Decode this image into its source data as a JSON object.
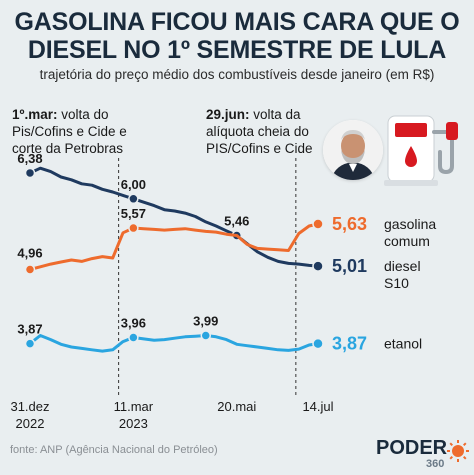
{
  "header": {
    "title_line1": "GASOLINA FICOU MAIS CARA QUE O",
    "title_line2": "DIESEL NO 1º SEMESTRE DE LULA",
    "subtitle": "trajetória do preço médio dos combustíveis desde janeiro (em R$)"
  },
  "annotations": {
    "left": {
      "date": "1º.mar:",
      "line1_rest": " volta do",
      "line2": "Pis/Cofins e Cide e",
      "line3": "corte da Petrobras"
    },
    "right": {
      "date": "29.jun:",
      "line1_rest": " volta da",
      "line2": "alíquota cheia do",
      "line3": "PIS/Cofins e Cide"
    }
  },
  "source": "fonte: ANP (Agência Nacional do Petróleo)",
  "logo": {
    "text": "PODER",
    "sub": "360"
  },
  "icons": {
    "avatar": "lula-portrait",
    "pump": "fuel-pump-icon"
  },
  "colors": {
    "diesel": "#1f3a5f",
    "gasolina": "#ee6b2d",
    "etanol": "#2aa5e0",
    "title": "#1a2b3c",
    "logo_accent": "#ee6b2d",
    "pump_red": "#d71920"
  },
  "chart_data": {
    "type": "line",
    "x": [
      "2022-12-31",
      "2023-01-07",
      "2023-01-14",
      "2023-01-21",
      "2023-01-28",
      "2023-02-04",
      "2023-02-11",
      "2023-02-18",
      "2023-02-25",
      "2023-03-04",
      "2023-03-11",
      "2023-03-18",
      "2023-03-25",
      "2023-04-01",
      "2023-04-08",
      "2023-04-15",
      "2023-04-22",
      "2023-04-29",
      "2023-05-06",
      "2023-05-13",
      "2023-05-20",
      "2023-05-27",
      "2023-06-03",
      "2023-06-10",
      "2023-06-17",
      "2023-06-24",
      "2023-07-01",
      "2023-07-08",
      "2023-07-14"
    ],
    "x_ticks": [
      {
        "label": "31.dez",
        "sub": "2022",
        "x": "2022-12-31"
      },
      {
        "label": "11.mar",
        "sub": "2023",
        "x": "2023-03-11"
      },
      {
        "label": "20.mai",
        "sub": "",
        "x": "2023-05-20"
      },
      {
        "label": "14.jul",
        "sub": "",
        "x": "2023-07-14"
      }
    ],
    "markers": [
      "2023-03-01",
      "2023-06-29"
    ],
    "ylim": [
      3.6,
      6.6
    ],
    "series": [
      {
        "name": "diesel S10",
        "label_line1": "diesel",
        "label_line2": "S10",
        "last_label": "5,01",
        "values": [
          6.38,
          6.45,
          6.4,
          6.32,
          6.28,
          6.22,
          6.2,
          6.14,
          6.1,
          6.05,
          6.0,
          5.95,
          5.9,
          5.84,
          5.82,
          5.79,
          5.74,
          5.66,
          5.6,
          5.53,
          5.46,
          5.34,
          5.22,
          5.14,
          5.08,
          5.05,
          5.04,
          5.02,
          5.01
        ],
        "point_labels": [
          {
            "x": "2022-12-31",
            "text": "6,38"
          },
          {
            "x": "2023-03-11",
            "text": "6,00"
          },
          {
            "x": "2023-05-20",
            "text": "5,46"
          }
        ]
      },
      {
        "name": "gasolina comum",
        "label_line1": "gasolina",
        "label_line2": "comum",
        "last_label": "5,63",
        "values": [
          4.96,
          5.0,
          5.04,
          5.07,
          5.1,
          5.08,
          5.12,
          5.15,
          5.13,
          5.5,
          5.57,
          5.56,
          5.55,
          5.54,
          5.55,
          5.56,
          5.54,
          5.52,
          5.51,
          5.48,
          5.46,
          5.33,
          5.27,
          5.26,
          5.25,
          5.24,
          5.49,
          5.6,
          5.63
        ],
        "point_labels": [
          {
            "x": "2022-12-31",
            "text": "4,96"
          },
          {
            "x": "2023-03-11",
            "text": "5,57"
          }
        ]
      },
      {
        "name": "etanol",
        "label_line1": "etanol",
        "label_line2": "",
        "last_label": "3,87",
        "values": [
          3.87,
          3.99,
          3.93,
          3.86,
          3.82,
          3.8,
          3.78,
          3.76,
          3.78,
          3.9,
          3.96,
          3.94,
          3.92,
          3.93,
          3.95,
          3.97,
          3.98,
          3.99,
          3.97,
          3.93,
          3.86,
          3.84,
          3.82,
          3.8,
          3.78,
          3.77,
          3.79,
          3.85,
          3.87
        ],
        "point_labels": [
          {
            "x": "2022-12-31",
            "text": "3,87"
          },
          {
            "x": "2023-03-11",
            "text": "3,96"
          },
          {
            "x": "2023-04-29",
            "text": "3,99"
          }
        ]
      }
    ]
  }
}
